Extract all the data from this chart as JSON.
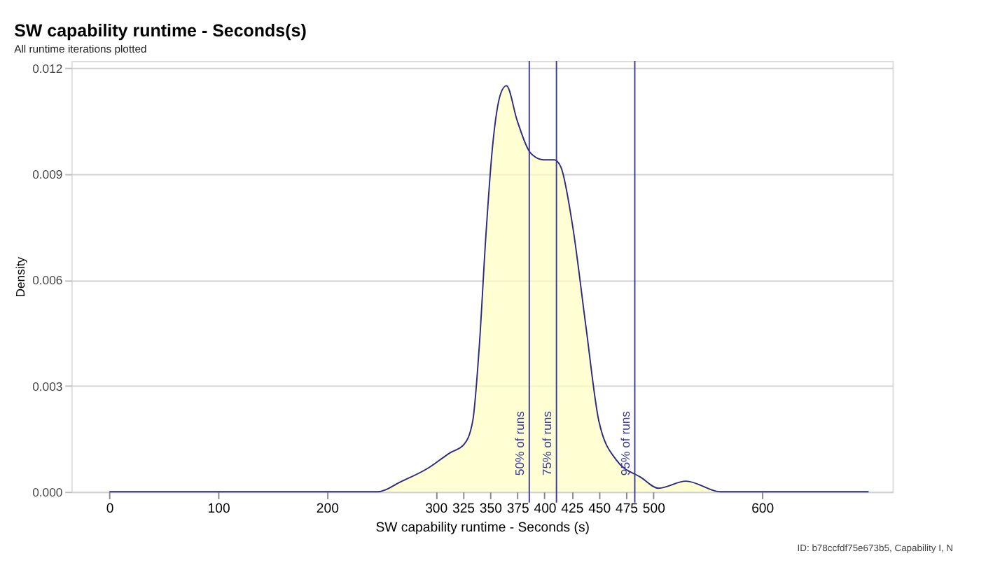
{
  "chart_data": {
    "type": "area",
    "title": "SW capability runtime - Seconds(s)",
    "subtitle": "All runtime iterations plotted",
    "xlabel": "SW capability runtime - Seconds (s)",
    "ylabel": "Density",
    "x": [
      0,
      100,
      200,
      246,
      269,
      293,
      313,
      326,
      334,
      340,
      346,
      352,
      360,
      365,
      375,
      387,
      399,
      409,
      415,
      426,
      438,
      450,
      466,
      489,
      505,
      530,
      562,
      600,
      698
    ],
    "series": [
      {
        "color": "#ffffc0",
        "values": [
          0,
          0,
          0,
          0,
          0.0003,
          0.00067,
          0.0011,
          0.00134,
          0.002,
          0.0041,
          0.0072,
          0.0097,
          0.0113,
          0.0115,
          0.0105,
          0.0096,
          0.0094,
          0.0094,
          0.0092,
          0.0075,
          0.0047,
          0.002,
          0.0009,
          0.0004,
          0.0001,
          0.0003,
          0,
          0,
          0
        ]
      }
    ],
    "xlim": [
      -35,
      720
    ],
    "xticks": [
      0,
      100,
      200,
      300,
      325,
      350,
      375,
      400,
      425,
      450,
      475,
      500,
      600
    ],
    "ylim": [
      0,
      0.0122
    ],
    "yticks": [
      {
        "value": 0,
        "label": "0.000"
      },
      0.003,
      0.006,
      0.009,
      0.012
    ],
    "grid": "y",
    "ref_lines": [
      {
        "axis": "x",
        "value": 386,
        "label": "50% of runs",
        "color": "#3b3b9a"
      },
      {
        "axis": "x",
        "value": 411,
        "label": "75% of runs",
        "color": "#3b3b9a"
      },
      {
        "axis": "x",
        "value": 483,
        "label": "95% of runs",
        "color": "#3b3b9a"
      }
    ],
    "annotations": [
      "ID: b78ccfdf75e673b5, Capability I, N"
    ]
  }
}
